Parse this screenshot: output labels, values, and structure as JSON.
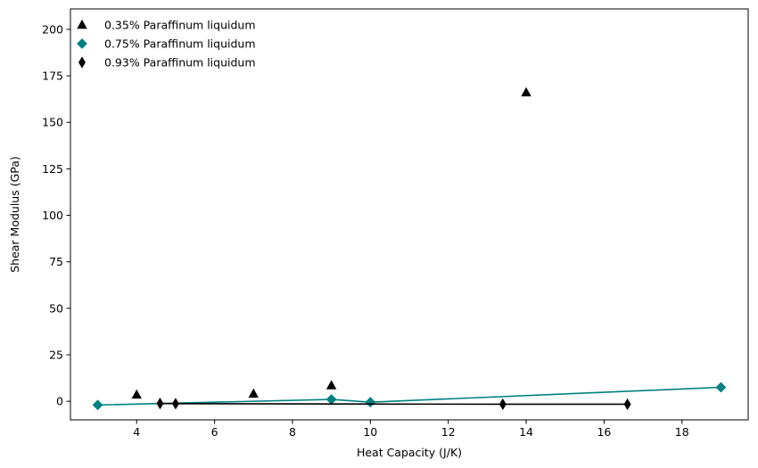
{
  "chart_data": {
    "type": "scatter",
    "title": "",
    "xlabel": "Heat Capacity (J/K)",
    "ylabel": "Shear Modulus (GPa)",
    "xlim": [
      2.3,
      19.7
    ],
    "ylim": [
      -10,
      211
    ],
    "xticks": [
      4,
      6,
      8,
      10,
      12,
      14,
      16,
      18
    ],
    "yticks": [
      0,
      25,
      50,
      75,
      100,
      125,
      150,
      175,
      200
    ],
    "grid": false,
    "legend_position": "top-left",
    "series": [
      {
        "name": "0.35% Paraffinum liquidum",
        "marker": "triangle",
        "color": "#000000",
        "show_line": false,
        "points": [
          {
            "x": 4,
            "y": 3.5
          },
          {
            "x": 7,
            "y": 4
          },
          {
            "x": 9,
            "y": 8.5
          },
          {
            "x": 14,
            "y": 166
          }
        ]
      },
      {
        "name": "0.75% Paraffinum liquidum",
        "marker": "diamond",
        "color": "#008080",
        "show_line": true,
        "line_color": "#008080",
        "points": [
          {
            "x": 3,
            "y": -2
          },
          {
            "x": 9,
            "y": 1
          },
          {
            "x": 10,
            "y": -0.5
          },
          {
            "x": 19,
            "y": 7.5
          }
        ]
      },
      {
        "name": "0.93% Paraffinum liquidum",
        "marker": "thin-diamond",
        "color": "#000000",
        "show_line": true,
        "line_color": "#000000",
        "points": [
          {
            "x": 4.6,
            "y": -1.2
          },
          {
            "x": 5,
            "y": -1.3
          },
          {
            "x": 13.4,
            "y": -1.6
          },
          {
            "x": 16.6,
            "y": -1.6
          }
        ]
      }
    ]
  }
}
